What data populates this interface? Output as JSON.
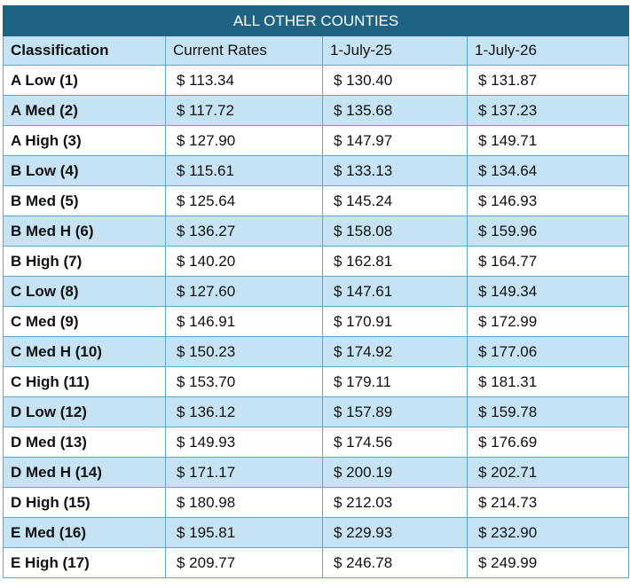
{
  "table": {
    "title": "ALL OTHER COUNTIES",
    "headers": [
      "Classification",
      "Current Rates",
      "1-July-25",
      "1-July-26"
    ],
    "rows": [
      [
        "A Low (1)",
        "$ 113.34",
        "$ 130.40",
        "$ 131.87"
      ],
      [
        "A Med (2)",
        "$ 117.72",
        "$ 135.68",
        "$ 137.23"
      ],
      [
        "A High (3)",
        "$ 127.90",
        "$ 147.97",
        "$ 149.71"
      ],
      [
        "B Low (4)",
        "$ 115.61",
        "$ 133.13",
        "$ 134.64"
      ],
      [
        "B Med (5)",
        "$ 125.64",
        "$ 145.24",
        "$ 146.93"
      ],
      [
        "B Med H (6)",
        "$ 136.27",
        "$ 158.08",
        "$ 159.96"
      ],
      [
        "B High (7)",
        "$ 140.20",
        "$ 162.81",
        "$ 164.77"
      ],
      [
        "C Low (8)",
        "$ 127.60",
        "$ 147.61",
        "$ 149.34"
      ],
      [
        "C Med (9)",
        "$ 146.91",
        "$ 170.91",
        "$ 172.99"
      ],
      [
        "C Med H (10)",
        "$ 150.23",
        "$ 174.92",
        "$ 177.06"
      ],
      [
        "C High (11)",
        "$ 153.70",
        "$ 179.11",
        "$ 181.31"
      ],
      [
        "D Low (12)",
        "$ 136.12",
        "$ 157.89",
        "$ 159.78"
      ],
      [
        "D Med (13)",
        "$ 149.93",
        "$ 174.56",
        "$ 176.69"
      ],
      [
        "D Med H (14)",
        "$ 171.17",
        "$ 200.19",
        "$ 202.71"
      ],
      [
        "D High (15)",
        "$ 180.98",
        "$ 212.03",
        "$ 214.73"
      ],
      [
        "E Med (16)",
        "$ 195.81",
        "$ 229.93",
        "$ 232.90"
      ],
      [
        "E High (17)",
        "$ 209.77",
        "$ 246.78",
        "$ 249.99"
      ]
    ]
  },
  "colors": {
    "title_bg": "#1f6382",
    "band_bg": "#c5e3f2",
    "border": "#5aa7c9"
  }
}
